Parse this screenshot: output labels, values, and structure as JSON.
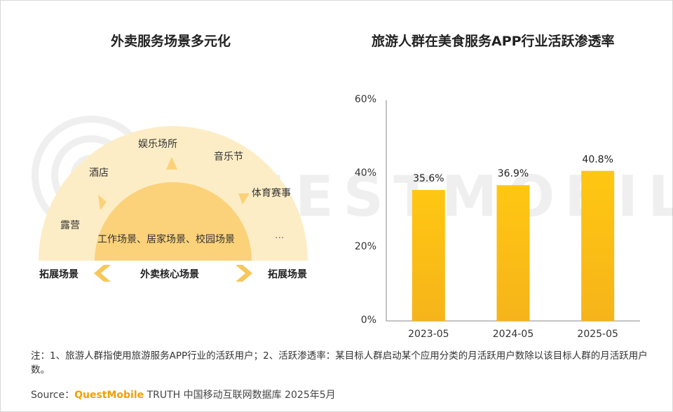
{
  "left_panel": {
    "title": "外卖服务场景多元化",
    "outer_labels": [
      "露营",
      "酒店",
      "娱乐场所",
      "音乐节",
      "体育赛事"
    ],
    "core_label_text": "工作场景、居家场景、校园场景",
    "ellipsis": "...",
    "bottom": {
      "left": "拓展场景",
      "center": "外卖核心场景",
      "right": "拓展场景"
    },
    "colors": {
      "outer_fill": "#fdedc6",
      "inner_fill": "#fbd27a",
      "arrow": "#f7c75a"
    }
  },
  "chart_data": {
    "type": "bar",
    "title": "旅游人群在美食服务APP行业活跃渗透率",
    "categories": [
      "2023-05",
      "2024-05",
      "2025-05"
    ],
    "values": [
      35.6,
      36.9,
      40.8
    ],
    "value_labels": [
      "35.6%",
      "36.9%",
      "40.8%"
    ],
    "y_ticks": [
      "0%",
      "20%",
      "40%",
      "60%"
    ],
    "ylim": [
      0,
      60
    ],
    "grid": false,
    "bar_color": "#fbbf14"
  },
  "footer": {
    "note": "注：1、旅游人群指使用旅游服务APP行业的活跃用户；2、活跃渗透率：某目标人群启动某个应用分类的月活跃用户数除以该目标人群的月活跃用户数。",
    "source_prefix": "Source：",
    "source_brand": "QuestMobile",
    "source_rest": " TRUTH 中国移动互联网数据库 2025年5月"
  },
  "watermark": "QUESTMOBILE"
}
